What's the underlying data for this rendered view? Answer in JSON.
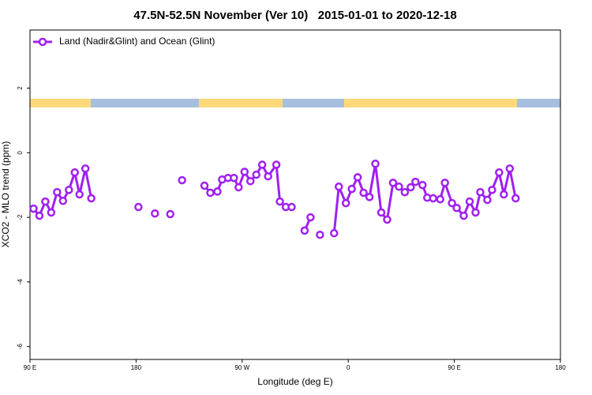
{
  "chart_data": {
    "type": "line",
    "title": "47.5N-52.5N November (Ver 10)   2015-01-01 to 2020-12-18",
    "xlabel": "Longitude (deg E)",
    "ylabel": "XCO2 - MLO trend (ppm)",
    "xlim": [
      90,
      540
    ],
    "ylim": [
      -6.4,
      3.8
    ],
    "xticks": [
      {
        "value": 90,
        "label": "90 E"
      },
      180,
      {
        "value": 270,
        "label": "90 W"
      },
      {
        "value": 360,
        "label": "0"
      },
      {
        "value": 450,
        "label": "90 E"
      },
      {
        "value": 540,
        "label": "180"
      }
    ],
    "yticks": [
      -6,
      -4,
      -2,
      0,
      2
    ],
    "legend": "top-left",
    "grid": false,
    "series": [
      {
        "name": "Land (Nadir&Glint) and Ocean (Glint)",
        "color": "#a020f0",
        "x": [
          93,
          98,
          103,
          108,
          113,
          118,
          123,
          128,
          132,
          137,
          142,
          null,
          182,
          null,
          196,
          null,
          209,
          null,
          219,
          null,
          238,
          243,
          249,
          253,
          258,
          263,
          267,
          272,
          277,
          282,
          287,
          292,
          299,
          302,
          307,
          312,
          null,
          323,
          328,
          null,
          336,
          null,
          348,
          352,
          358,
          363,
          368,
          373,
          378,
          383,
          388,
          393,
          398,
          403,
          408,
          413,
          417,
          423,
          427,
          432,
          438,
          442,
          448,
          452,
          458,
          463,
          468,
          472,
          478,
          482,
          488,
          492,
          497,
          502
        ],
        "values": [
          -1.73,
          -1.95,
          -1.51,
          -1.85,
          -1.22,
          -1.49,
          -1.15,
          -0.61,
          -1.29,
          -0.49,
          -1.41,
          null,
          -1.68,
          null,
          -1.88,
          null,
          -1.9,
          null,
          -0.85,
          null,
          -1.02,
          -1.24,
          -1.2,
          -0.83,
          -0.78,
          -0.78,
          -1.07,
          -0.59,
          -0.88,
          -0.68,
          -0.37,
          -0.73,
          -0.37,
          -1.51,
          -1.68,
          -1.68,
          null,
          -2.41,
          -2.0,
          null,
          -2.54,
          null,
          -2.49,
          -1.05,
          -1.56,
          -1.12,
          -0.76,
          -1.24,
          -1.37,
          -0.34,
          -1.85,
          -2.07,
          -0.93,
          -1.05,
          -1.22,
          -1.07,
          -0.9,
          -1.0,
          -1.39,
          -1.41,
          -1.44,
          -0.93,
          -1.56,
          -1.71,
          -1.95,
          -1.51,
          -1.85,
          -1.22,
          -1.46,
          -1.15,
          -0.61,
          -1.29,
          -0.49,
          -1.41
        ]
      }
    ]
  }
}
